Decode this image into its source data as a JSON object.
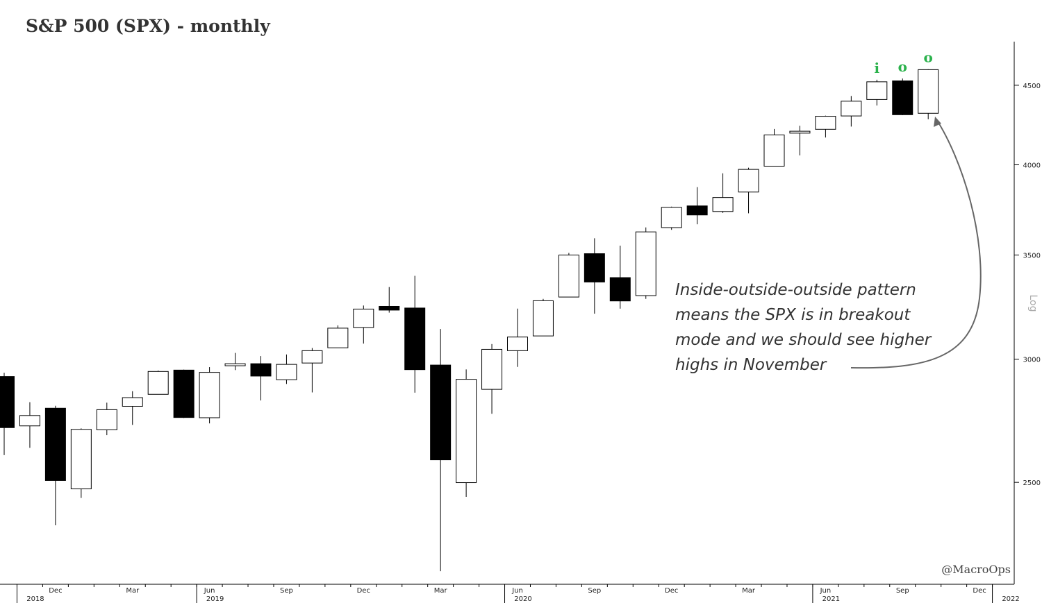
{
  "chart_data": {
    "type": "candlestick",
    "title": "S&P 500 (SPX) - monthly",
    "ylabel": "Log",
    "yscale": "log",
    "ylim": [
      2150,
      4800
    ],
    "yticks": [
      2500,
      3000,
      3500,
      4000,
      4500
    ],
    "x_month_labels": [
      {
        "label": "Dec",
        "i": 2
      },
      {
        "label": "Mar",
        "i": 5
      },
      {
        "label": "Jun",
        "i": 8
      },
      {
        "label": "Sep",
        "i": 11
      },
      {
        "label": "Dec",
        "i": 14
      },
      {
        "label": "Mar",
        "i": 17
      },
      {
        "label": "Jun",
        "i": 20
      },
      {
        "label": "Sep",
        "i": 23
      },
      {
        "label": "Dec",
        "i": 26
      },
      {
        "label": "Mar",
        "i": 29
      },
      {
        "label": "Jun",
        "i": 32
      },
      {
        "label": "Sep",
        "i": 35
      },
      {
        "label": "Dec",
        "i": 38
      }
    ],
    "x_year_labels": [
      {
        "label": "2018",
        "i": 1
      },
      {
        "label": "2019",
        "i": 8
      },
      {
        "label": "2020",
        "i": 20
      },
      {
        "label": "2021",
        "i": 32
      },
      {
        "label": "2022",
        "i": 39
      }
    ],
    "candles": [
      {
        "date": "2018-10",
        "open": 2924,
        "high": 2940,
        "low": 2603,
        "close": 2711
      },
      {
        "date": "2018-11",
        "open": 2718,
        "high": 2815,
        "low": 2631,
        "close": 2760
      },
      {
        "date": "2018-12",
        "open": 2790,
        "high": 2800,
        "low": 2346,
        "close": 2507
      },
      {
        "date": "2019-01",
        "open": 2476,
        "high": 2708,
        "low": 2443,
        "close": 2704
      },
      {
        "date": "2019-02",
        "open": 2702,
        "high": 2813,
        "low": 2681,
        "close": 2784
      },
      {
        "date": "2019-03",
        "open": 2798,
        "high": 2861,
        "low": 2722,
        "close": 2834
      },
      {
        "date": "2019-04",
        "open": 2848,
        "high": 2950,
        "low": 2848,
        "close": 2946
      },
      {
        "date": "2019-05",
        "open": 2952,
        "high": 2954,
        "low": 2750,
        "close": 2752
      },
      {
        "date": "2019-06",
        "open": 2751,
        "high": 2965,
        "low": 2728,
        "close": 2942
      },
      {
        "date": "2019-07",
        "open": 2971,
        "high": 3028,
        "low": 2952,
        "close": 2980
      },
      {
        "date": "2019-08",
        "open": 2980,
        "high": 3014,
        "low": 2822,
        "close": 2926
      },
      {
        "date": "2019-09",
        "open": 2910,
        "high": 3021,
        "low": 2892,
        "close": 2977
      },
      {
        "date": "2019-10",
        "open": 2983,
        "high": 3050,
        "low": 2856,
        "close": 3038
      },
      {
        "date": "2019-11",
        "open": 3051,
        "high": 3154,
        "low": 3050,
        "close": 3141
      },
      {
        "date": "2019-12",
        "open": 3144,
        "high": 3248,
        "low": 3070,
        "close": 3231
      },
      {
        "date": "2020-01",
        "open": 3244,
        "high": 3338,
        "low": 3214,
        "close": 3226
      },
      {
        "date": "2020-02",
        "open": 3236,
        "high": 3394,
        "low": 2855,
        "close": 2954
      },
      {
        "date": "2020-03",
        "open": 2974,
        "high": 3137,
        "low": 2192,
        "close": 2585
      },
      {
        "date": "2020-04",
        "open": 2499,
        "high": 2955,
        "low": 2447,
        "close": 2912
      },
      {
        "date": "2020-05",
        "open": 2869,
        "high": 3068,
        "low": 2767,
        "close": 3044
      },
      {
        "date": "2020-06",
        "open": 3038,
        "high": 3233,
        "low": 2966,
        "close": 3100
      },
      {
        "date": "2020-07",
        "open": 3105,
        "high": 3280,
        "low": 3105,
        "close": 3271
      },
      {
        "date": "2020-08",
        "open": 3289,
        "high": 3511,
        "low": 3289,
        "close": 3500
      },
      {
        "date": "2020-09",
        "open": 3507,
        "high": 3588,
        "low": 3209,
        "close": 3363
      },
      {
        "date": "2020-10",
        "open": 3385,
        "high": 3549,
        "low": 3233,
        "close": 3270
      },
      {
        "date": "2020-11",
        "open": 3296,
        "high": 3646,
        "low": 3280,
        "close": 3622
      },
      {
        "date": "2020-12",
        "open": 3645,
        "high": 3760,
        "low": 3633,
        "close": 3756
      },
      {
        "date": "2021-01",
        "open": 3764,
        "high": 3870,
        "low": 3663,
        "close": 3714
      },
      {
        "date": "2021-02",
        "open": 3733,
        "high": 3950,
        "low": 3725,
        "close": 3811
      },
      {
        "date": "2021-03",
        "open": 3842,
        "high": 3983,
        "low": 3723,
        "close": 3973
      },
      {
        "date": "2021-04",
        "open": 3992,
        "high": 4218,
        "low": 3992,
        "close": 4181
      },
      {
        "date": "2021-05",
        "open": 4192,
        "high": 4238,
        "low": 4056,
        "close": 4204
      },
      {
        "date": "2021-06",
        "open": 4216,
        "high": 4302,
        "low": 4165,
        "close": 4298
      },
      {
        "date": "2021-07",
        "open": 4300,
        "high": 4429,
        "low": 4233,
        "close": 4395
      },
      {
        "date": "2021-08",
        "open": 4406,
        "high": 4537,
        "low": 4367,
        "close": 4523
      },
      {
        "date": "2021-09",
        "open": 4529,
        "high": 4545,
        "low": 4305,
        "close": 4308
      },
      {
        "date": "2021-10",
        "open": 4317,
        "high": 4608,
        "low": 4279,
        "close": 4605
      }
    ],
    "pattern_markers": [
      {
        "label": "i",
        "i": 34
      },
      {
        "label": "o",
        "i": 35
      },
      {
        "label": "o",
        "i": 36
      }
    ],
    "marker_color": "#2bb24c",
    "annotation_lines": [
      "Inside-outside-outside pattern",
      "means the SPX is in breakout",
      "mode and we should see higher",
      "highs in November"
    ],
    "credit": "@MacroOps"
  }
}
